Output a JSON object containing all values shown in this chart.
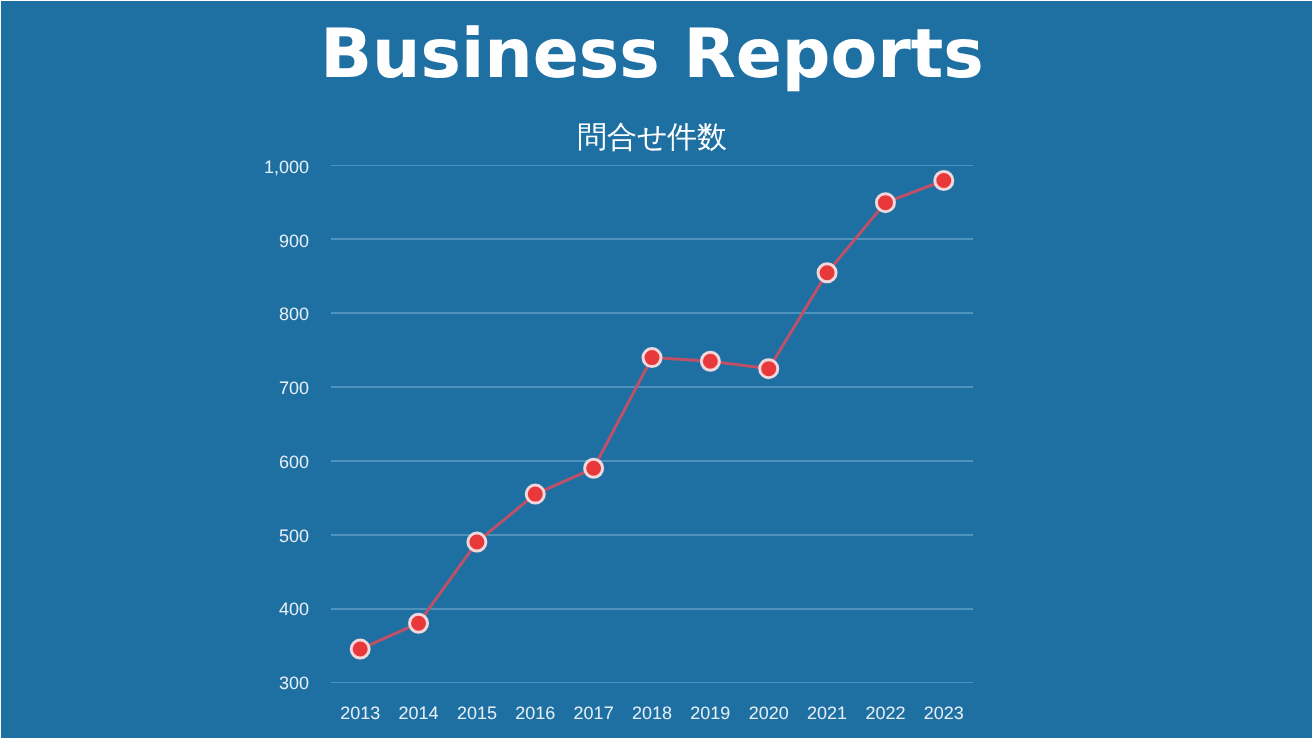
{
  "chart_data": {
    "type": "line",
    "title": "Business Reports",
    "subtitle": "問合せ件数",
    "categories": [
      "2013",
      "2014",
      "2015",
      "2016",
      "2017",
      "2018",
      "2019",
      "2020",
      "2021",
      "2022",
      "2023"
    ],
    "series": [
      {
        "color": "#c05068",
        "values": [
          345,
          380,
          490,
          555,
          590,
          740,
          735,
          725,
          855,
          950,
          980
        ]
      }
    ],
    "marker": "circle",
    "line_style": "solid",
    "ylim": [
      300,
      1000
    ],
    "yticks": [
      300,
      400,
      500,
      600,
      700,
      800,
      900,
      {
        "value": 1000,
        "label": "1,000"
      }
    ],
    "grid": "y"
  }
}
